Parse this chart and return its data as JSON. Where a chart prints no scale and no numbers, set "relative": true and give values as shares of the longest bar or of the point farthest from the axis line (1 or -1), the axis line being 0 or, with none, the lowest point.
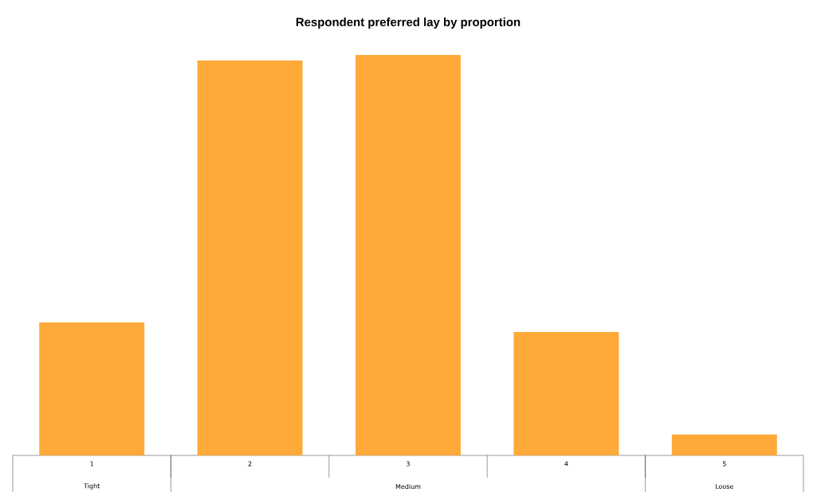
{
  "chart_data": {
    "type": "bar",
    "title": "Respondent preferred lay by proportion",
    "categories": [
      "1",
      "2",
      "3",
      "4",
      "5"
    ],
    "values": [
      0.332,
      0.986,
      1,
      0.308,
      0.052
    ],
    "color": "#ffa939",
    "relative": true,
    "annotations": [
      "Tight",
      "Medium",
      "Loose"
    ]
  }
}
